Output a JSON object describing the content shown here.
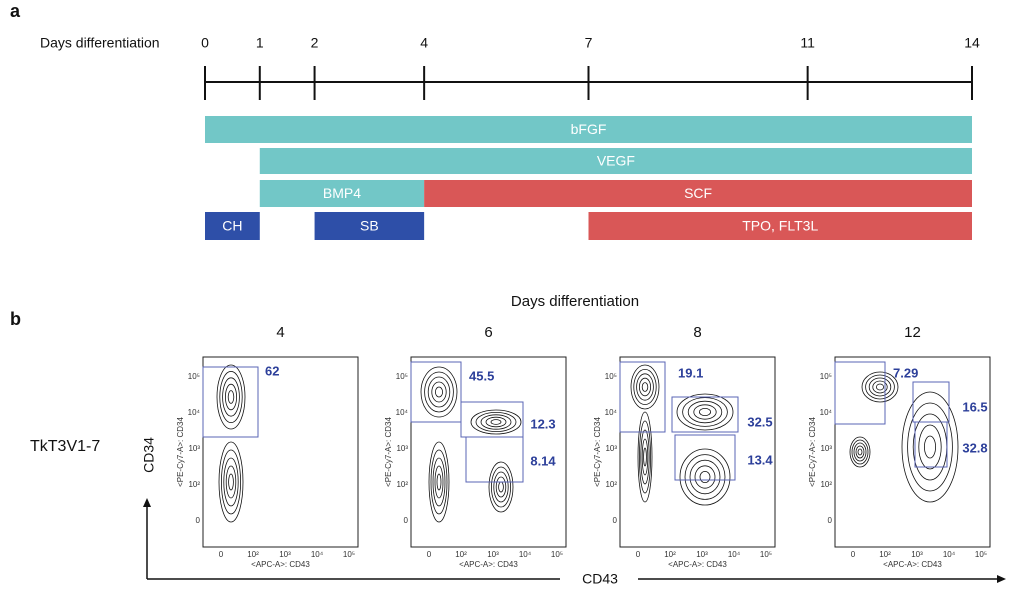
{
  "panel_a": {
    "label": "a",
    "axis_label": "Days differentiation",
    "days": [
      0,
      1,
      2,
      4,
      7,
      11,
      14
    ],
    "bars": [
      {
        "label": "bFGF",
        "start": 0,
        "end": 14,
        "color": "#72c7c7"
      },
      {
        "label": "VEGF",
        "start": 1,
        "end": 14,
        "color": "#72c7c7"
      },
      {
        "label": "BMP4",
        "start": 1,
        "end": 4,
        "color": "#72c7c7"
      },
      {
        "label": "SCF",
        "start": 4,
        "end": 14,
        "color": "#d95757"
      },
      {
        "label": "CH",
        "start": 0,
        "end": 1,
        "color": "#2e4fa8"
      },
      {
        "label": "SB",
        "start": 2,
        "end": 4,
        "color": "#2e4fa8"
      },
      {
        "label": "TPO, FLT3L",
        "start": 7,
        "end": 14,
        "color": "#d95757"
      }
    ]
  },
  "panel_b": {
    "label": "b",
    "title": "Days differentiation",
    "row_label": "TkT3V1-7",
    "y_label": "CD34",
    "x_label": "CD43",
    "plot_y_label": "<PE-Cy7-A>: CD34",
    "plot_x_label": "<APC-A>: CD43",
    "y_ticks": [
      "10⁵",
      "10⁴",
      "10³",
      "10²",
      "0"
    ],
    "x_ticks": [
      "0",
      "10²",
      "10³",
      "10⁴",
      "10⁵"
    ],
    "plots": [
      {
        "day": "4",
        "gates": [
          62
        ]
      },
      {
        "day": "6",
        "gates": [
          45.5,
          12.3,
          8.14
        ]
      },
      {
        "day": "8",
        "gates": [
          19.1,
          32.5,
          13.4
        ]
      },
      {
        "day": "12",
        "gates": [
          7.29,
          16.5,
          32.8
        ]
      }
    ]
  }
}
